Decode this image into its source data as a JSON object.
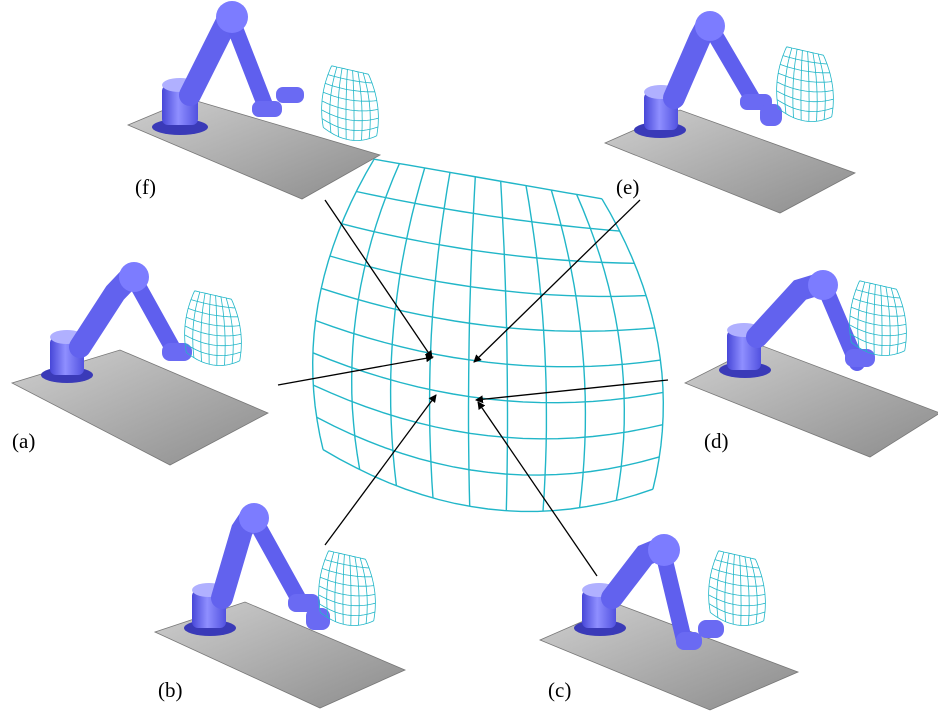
{
  "labels": {
    "a": "(a)",
    "b": "(b)",
    "c": "(c)",
    "d": "(d)",
    "e": "(e)",
    "f": "(f)"
  },
  "colors": {
    "grid": "#21b6c8",
    "arm": "#6f6ff5",
    "arm_dark": "#3c3cc8",
    "arm_light": "#a9a9ff",
    "floor": "#a9a9a9",
    "floor_edge": "#555555",
    "arrow": "#000000"
  }
}
